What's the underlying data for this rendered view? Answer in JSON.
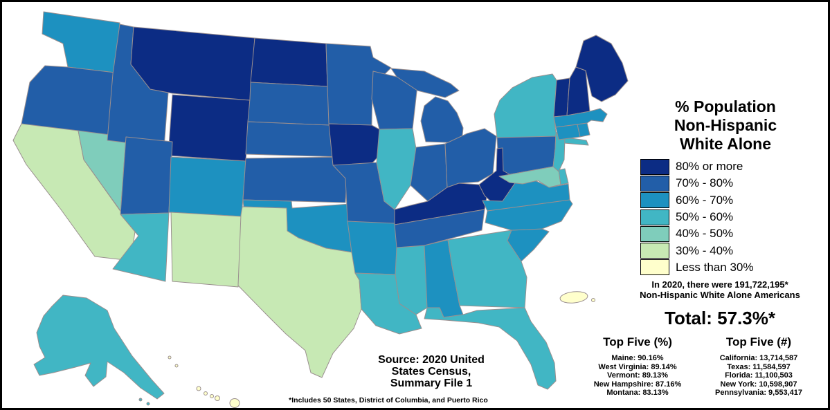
{
  "title": {
    "lines": [
      "% Population",
      "Non-Hispanic",
      "White Alone"
    ]
  },
  "legend": {
    "items": [
      {
        "label": "80% or more",
        "bucket": "80+",
        "color": "#0c2c84"
      },
      {
        "label": "70% - 80%",
        "bucket": "70-80",
        "color": "#225ea8"
      },
      {
        "label": "60% - 70%",
        "bucket": "60-70",
        "color": "#1d91c0"
      },
      {
        "label": "50% - 60%",
        "bucket": "50-60",
        "color": "#41b6c4"
      },
      {
        "label": "40% - 50%",
        "bucket": "40-50",
        "color": "#7fcdbb"
      },
      {
        "label": "30% - 40%",
        "bucket": "30-40",
        "color": "#c7e9b4"
      },
      {
        "label": "Less than 30%",
        "bucket": "<30",
        "color": "#ffffcc"
      }
    ]
  },
  "summary": {
    "line1": "In 2020, there were 191,722,195*",
    "line2": "Non-Hispanic White Alone Americans",
    "total": "Total: 57.3%*"
  },
  "top_five_pct": {
    "heading": "Top Five (%)",
    "items": [
      "Maine: 90.16%",
      "West Virginia: 89.14%",
      "Vermont: 89.13%",
      "New Hampshire: 87.16%",
      "Montana: 83.13%"
    ]
  },
  "top_five_num": {
    "heading": "Top Five (#)",
    "items": [
      "California: 13,714,587",
      "Texas: 11,584,597",
      "Florida: 11,100,503",
      "New York: 10,598,907",
      "Pennsylvania: 9,553,417"
    ]
  },
  "source": {
    "lines": [
      "Source: 2020 United",
      "States Census,",
      "Summary File 1"
    ]
  },
  "footnote": "*Includes 50 States, District of Columbia, and Puerto Rico",
  "chart_data": {
    "type": "choropleth",
    "title": "% Population Non-Hispanic White Alone",
    "unit": "percent of state population, 2020 Census Summary File 1",
    "total_percent": 57.3,
    "total_count": 191722195,
    "legend_position": "right",
    "bucket_colors": {
      "80+": "#0c2c84",
      "70-80": "#225ea8",
      "60-70": "#1d91c0",
      "50-60": "#41b6c4",
      "40-50": "#7fcdbb",
      "30-40": "#c7e9b4",
      "<30": "#ffffcc"
    },
    "state_buckets": {
      "WA": "60-70",
      "OR": "70-80",
      "CA": "30-40",
      "NV": "40-50",
      "ID": "70-80",
      "MT": "80+",
      "WY": "80+",
      "UT": "70-80",
      "CO": "60-70",
      "AZ": "50-60",
      "NM": "30-40",
      "ND": "80+",
      "SD": "70-80",
      "NE": "70-80",
      "KS": "70-80",
      "OK": "60-70",
      "TX": "30-40",
      "MN": "70-80",
      "IA": "80+",
      "MO": "70-80",
      "AR": "60-70",
      "LA": "50-60",
      "WI": "70-80",
      "IL": "50-60",
      "MS": "50-60",
      "MI": "70-80",
      "IN": "70-80",
      "OH": "70-80",
      "KY": "80+",
      "TN": "70-80",
      "AL": "60-70",
      "GA": "50-60",
      "FL": "50-60",
      "SC": "60-70",
      "NC": "60-70",
      "PA": "70-80",
      "WV": "80+",
      "VA": "60-70",
      "MD": "40-50",
      "DE": "50-60",
      "NJ": "50-60",
      "NY": "50-60",
      "VT": "80+",
      "NH": "80+",
      "ME": "80+",
      "MA": "60-70",
      "CT": "60-70",
      "RI": "60-70",
      "AK": "50-60",
      "HI": "<30",
      "PR": "<30"
    },
    "top_five_percent": [
      {
        "name": "Maine",
        "percent": 90.16
      },
      {
        "name": "West Virginia",
        "percent": 89.14
      },
      {
        "name": "Vermont",
        "percent": 89.13
      },
      {
        "name": "New Hampshire",
        "percent": 87.16
      },
      {
        "name": "Montana",
        "percent": 83.13
      }
    ],
    "top_five_count": [
      {
        "name": "California",
        "count": 13714587
      },
      {
        "name": "Texas",
        "count": 11584597
      },
      {
        "name": "Florida",
        "count": 11100503
      },
      {
        "name": "New York",
        "count": 10598907
      },
      {
        "name": "Pennsylvania",
        "count": 9553417
      }
    ]
  }
}
